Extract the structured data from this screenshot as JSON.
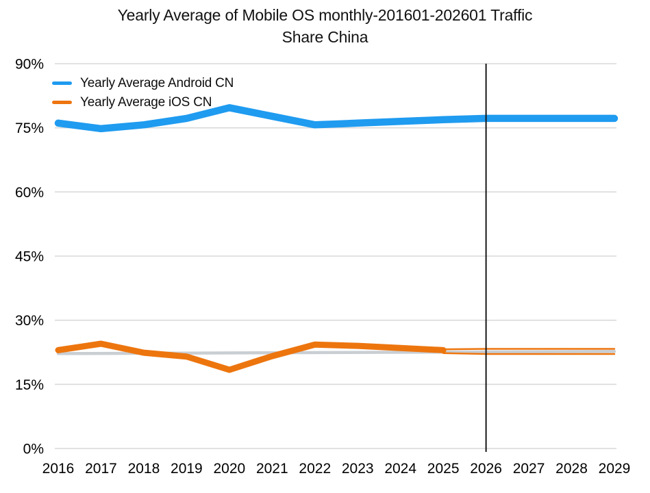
{
  "header": {
    "title_line1": "Yearly Average of Mobile OS monthly-201601-202601 Traffic",
    "title_line2": "Share China"
  },
  "chart_data": {
    "type": "line",
    "title": "Yearly Average of Mobile OS monthly-201601-202601 Traffic Share China",
    "xlabel": "",
    "ylabel": "",
    "x_range": [
      2016,
      2029
    ],
    "ylim": [
      0,
      90
    ],
    "grid": true,
    "background_color": "#ffffff",
    "gridline_color": "#d9d9d9",
    "axis_text_color": "#000000",
    "xticks": [
      2016,
      2017,
      2018,
      2019,
      2020,
      2021,
      2022,
      2023,
      2024,
      2025,
      2026,
      2027,
      2028,
      2029
    ],
    "xtick_labels": [
      "2016",
      "2017",
      "2018",
      "2019",
      "2020",
      "2021",
      "2022",
      "2023",
      "2024",
      "2025",
      "2026",
      "2027",
      "2028",
      "2029"
    ],
    "yticks": [
      0,
      15,
      30,
      45,
      60,
      75,
      90
    ],
    "ytick_labels": [
      "0%",
      "15%",
      "30%",
      "45%",
      "60%",
      "75%",
      "90%"
    ],
    "legend_position": "top-left",
    "series": [
      {
        "name": "Yearly Average Android CN",
        "color": "#1f9bf0",
        "stroke_width": 10.5,
        "in_legend": true,
        "x": [
          2016,
          2017,
          2018,
          2019,
          2020,
          2021,
          2022,
          2023,
          2024,
          2025,
          2026,
          2027,
          2028,
          2029
        ],
        "values": [
          76.1,
          74.8,
          75.7,
          77.2,
          79.7,
          77.7,
          75.7,
          76.1,
          76.5,
          76.9,
          77.2,
          77.2,
          77.2,
          77.2
        ]
      },
      {
        "name": "Yearly Average iOS CN",
        "color": "#ed750e",
        "stroke_width": 9,
        "in_legend": true,
        "x": [
          2016,
          2017,
          2018,
          2019,
          2020,
          2021,
          2022,
          2023,
          2024,
          2025
        ],
        "values": [
          23.0,
          24.5,
          22.4,
          21.5,
          18.4,
          21.6,
          24.3,
          24.0,
          23.5,
          23.0
        ]
      },
      {
        "name": "iOS CN forecast upper bound",
        "color": "#ed750e",
        "stroke_width": 2.5,
        "in_legend": false,
        "x": [
          2025,
          2026,
          2027,
          2028,
          2029
        ],
        "values": [
          23.2,
          23.3,
          23.3,
          23.3,
          23.3
        ]
      },
      {
        "name": "iOS CN forecast lower bound",
        "color": "#ed750e",
        "stroke_width": 2.5,
        "in_legend": false,
        "x": [
          2025,
          2026,
          2027,
          2028,
          2029
        ],
        "values": [
          22.3,
          22.1,
          22.1,
          22.1,
          22.1
        ]
      },
      {
        "name": "iOS CN trend line",
        "color": "#c9ced3",
        "stroke_width": 4.5,
        "in_legend": false,
        "x": [
          2016,
          2029
        ],
        "values": [
          22.2,
          22.7
        ]
      }
    ],
    "annotations": [
      {
        "type": "vline",
        "x": 2026,
        "color": "#161616",
        "stroke_width": 2
      }
    ]
  }
}
